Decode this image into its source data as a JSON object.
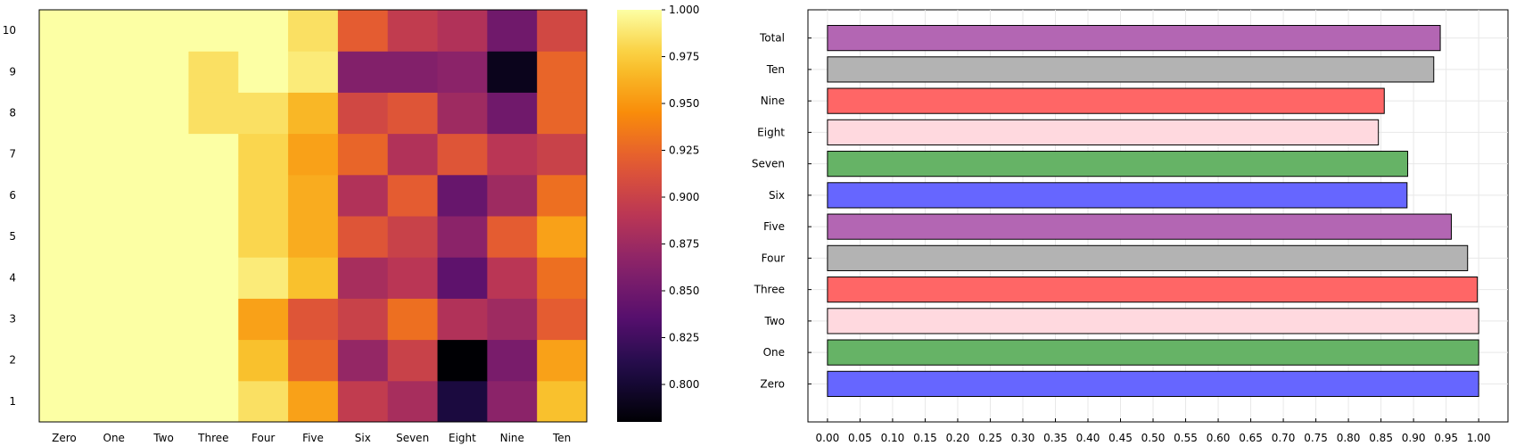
{
  "chart_data": [
    {
      "type": "heatmap",
      "title": "",
      "xlabel": "",
      "ylabel": "",
      "x_categories": [
        "Zero",
        "One",
        "Two",
        "Three",
        "Four",
        "Five",
        "Six",
        "Seven",
        "Eight",
        "Nine",
        "Ten"
      ],
      "y_categories": [
        "1",
        "2",
        "3",
        "4",
        "5",
        "6",
        "7",
        "8",
        "9",
        "10"
      ],
      "values": [
        [
          1.0,
          1.0,
          1.0,
          1.0,
          0.985,
          0.955,
          0.895,
          0.88,
          0.805,
          0.865,
          0.97
        ],
        [
          1.0,
          1.0,
          1.0,
          1.0,
          0.97,
          0.925,
          0.87,
          0.9,
          0.78,
          0.855,
          0.955
        ],
        [
          1.0,
          1.0,
          1.0,
          1.0,
          0.955,
          0.915,
          0.9,
          0.93,
          0.885,
          0.875,
          0.92
        ],
        [
          1.0,
          1.0,
          1.0,
          1.0,
          0.99,
          0.97,
          0.88,
          0.89,
          0.84,
          0.89,
          0.93
        ],
        [
          1.0,
          1.0,
          1.0,
          1.0,
          0.98,
          0.96,
          0.915,
          0.9,
          0.865,
          0.92,
          0.955
        ],
        [
          1.0,
          1.0,
          1.0,
          1.0,
          0.98,
          0.96,
          0.885,
          0.92,
          0.845,
          0.875,
          0.93
        ],
        [
          1.0,
          1.0,
          1.0,
          1.0,
          0.98,
          0.955,
          0.925,
          0.885,
          0.915,
          0.89,
          0.9
        ],
        [
          1.0,
          1.0,
          1.0,
          0.985,
          0.985,
          0.965,
          0.905,
          0.915,
          0.875,
          0.85,
          0.925
        ],
        [
          1.0,
          1.0,
          1.0,
          0.985,
          1.0,
          0.99,
          0.86,
          0.86,
          0.865,
          0.79,
          0.925
        ],
        [
          1.0,
          1.0,
          1.0,
          1.0,
          1.0,
          0.985,
          0.92,
          0.895,
          0.885,
          0.85,
          0.905
        ]
      ],
      "colorbar": {
        "min": 0.78,
        "max": 1.0,
        "ticks": [
          "0.800",
          "0.825",
          "0.850",
          "0.875",
          "0.900",
          "0.925",
          "0.950",
          "0.975",
          "1.000"
        ],
        "colormap": "inferno"
      }
    },
    {
      "type": "bar",
      "orientation": "horizontal",
      "title": "",
      "xlabel": "",
      "ylabel": "",
      "categories": [
        "Zero",
        "One",
        "Two",
        "Three",
        "Four",
        "Five",
        "Six",
        "Seven",
        "Eight",
        "Nine",
        "Ten",
        "Total"
      ],
      "values": [
        1.0,
        1.0,
        1.0,
        0.998,
        0.983,
        0.958,
        0.89,
        0.891,
        0.846,
        0.855,
        0.931,
        0.941
      ],
      "colors": [
        "#6666ff",
        "#66b366",
        "#ffd9df",
        "#ff6666",
        "#b3b3b3",
        "#b366b3",
        "#6666ff",
        "#66b366",
        "#ffd9df",
        "#ff6666",
        "#b3b3b3",
        "#b366b3"
      ],
      "xlim": [
        -0.03,
        1.045
      ],
      "x_ticks": [
        "0.00",
        "0.05",
        "0.10",
        "0.15",
        "0.20",
        "0.25",
        "0.30",
        "0.35",
        "0.40",
        "0.45",
        "0.50",
        "0.55",
        "0.60",
        "0.65",
        "0.70",
        "0.75",
        "0.80",
        "0.85",
        "0.90",
        "0.95",
        "1.00"
      ],
      "grid": true,
      "legend": "none"
    }
  ]
}
